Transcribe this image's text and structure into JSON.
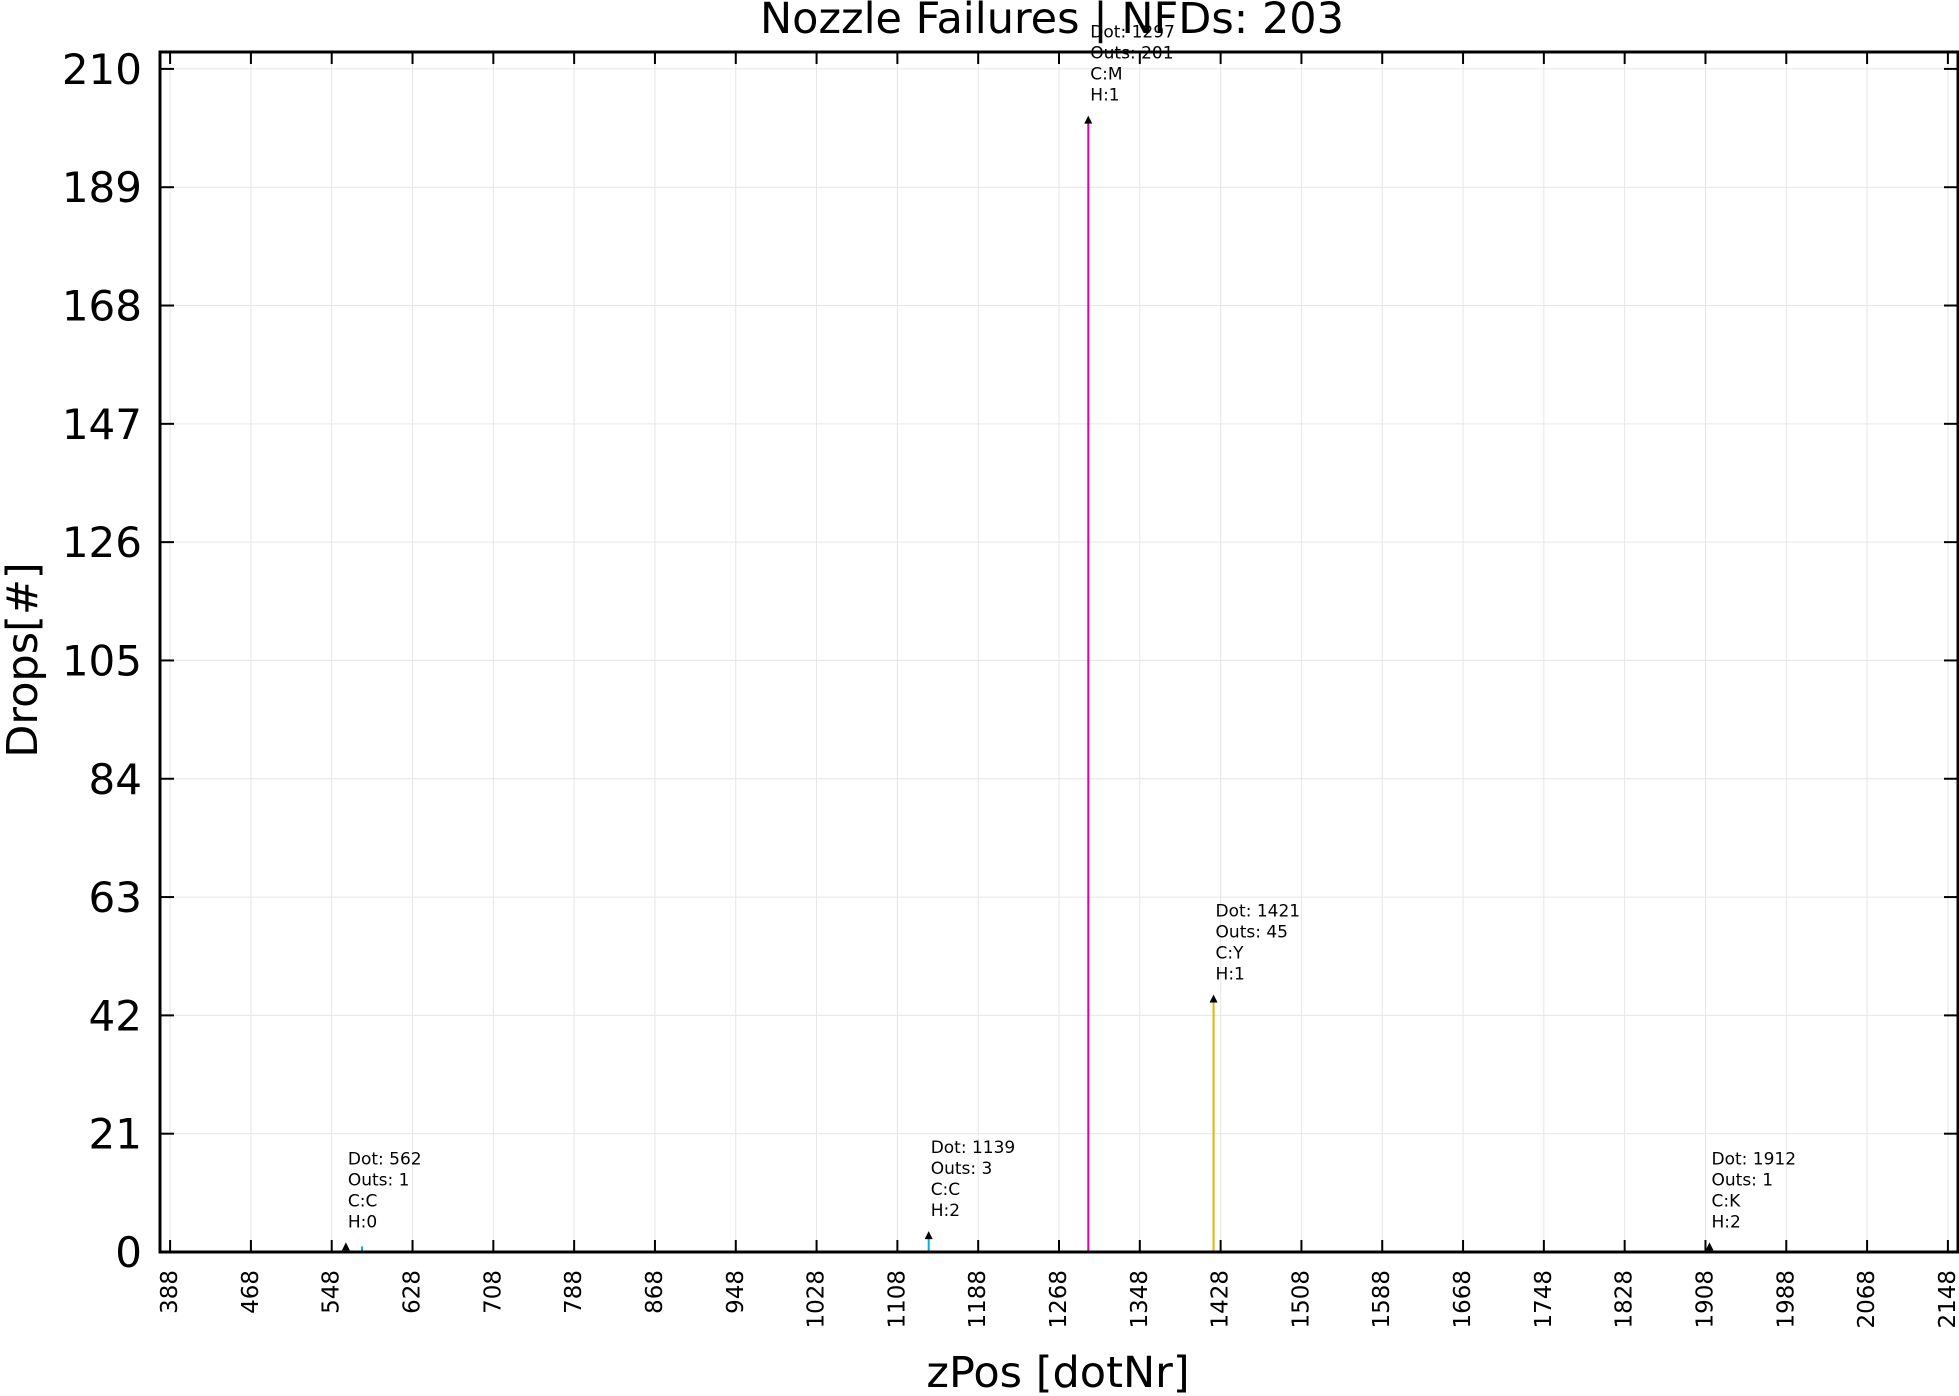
{
  "chart_data": {
    "type": "scatter",
    "title": "Nozzle Failures | NFDs: 203",
    "xlabel": "zPos [dotNr]",
    "ylabel": "Drops[#]",
    "xlim": [
      378,
      2158
    ],
    "ylim": [
      0,
      213
    ],
    "x_ticks": [
      "388",
      "468",
      "548",
      "628",
      "708",
      "788",
      "868",
      "948",
      "1028",
      "1108",
      "1188",
      "1268",
      "1348",
      "1428",
      "1508",
      "1588",
      "1668",
      "1748",
      "1828",
      "1908",
      "1988",
      "2068",
      "2148"
    ],
    "y_ticks": [
      "0",
      "21",
      "42",
      "63",
      "84",
      "105",
      "126",
      "147",
      "168",
      "189",
      "210"
    ],
    "grid": true,
    "colors": {
      "C": "#00aee6",
      "M": "#e6009a",
      "Y": "#e0b400",
      "K": "#000000"
    },
    "points": [
      {
        "x": 562,
        "y": 1,
        "color": "C",
        "label": [
          "Dot: 562",
          " Outs: 1",
          " C:C",
          " H:0"
        ]
      },
      {
        "x": 1139,
        "y": 3,
        "color": "C",
        "label": [
          "Dot: 1139",
          " Outs: 3",
          " C:C",
          " H:2"
        ]
      },
      {
        "x": 1297,
        "y": 201,
        "color": "M",
        "label": [
          "Dot: 1297",
          " Outs: 201",
          " C:M",
          " H:1"
        ]
      },
      {
        "x": 1421,
        "y": 45,
        "color": "Y",
        "label": [
          "Dot: 1421",
          " Outs: 45",
          " C:Y",
          " H:1"
        ]
      },
      {
        "x": 1912,
        "y": 1,
        "color": "K",
        "label": [
          "Dot: 1912",
          " Outs: 1",
          " C:K",
          " H:2"
        ]
      }
    ],
    "extra_stems": [
      {
        "x": 578,
        "y": 1,
        "color": "C"
      }
    ]
  }
}
